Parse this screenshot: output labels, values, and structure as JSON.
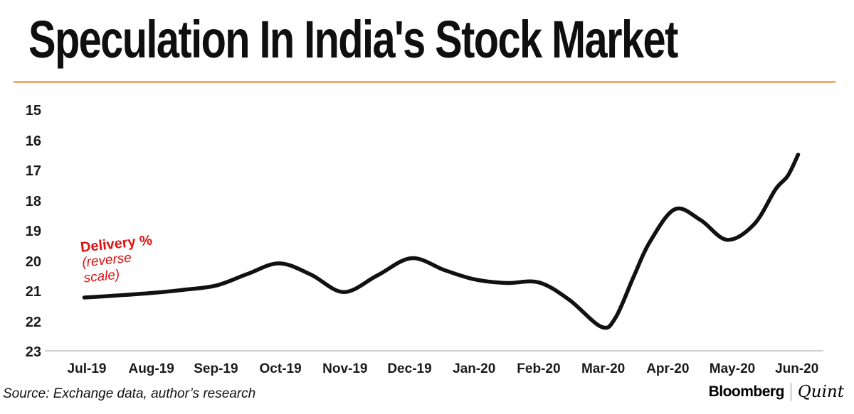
{
  "title": "Speculation In India's Stock Market",
  "accent_color": "#F4AC6E",
  "annotation": {
    "lines": [
      "Delivery %",
      "(reverse",
      "scale)"
    ],
    "color": "#E01111"
  },
  "footer": {
    "source": "Source: Exchange data, author’s research",
    "brand_left": "Bloomberg",
    "brand_right": "Quint"
  },
  "chart_data": {
    "type": "line",
    "title": "Speculation In India's Stock Market",
    "series": [
      {
        "name": "Delivery % (reverse scale)",
        "values": [
          21.2,
          21.0,
          20.8,
          20.1,
          21.0,
          19.9,
          20.6,
          20.7,
          22.2,
          18.3,
          19.3,
          16.5
        ]
      }
    ],
    "categories": [
      "Jul-19",
      "Aug-19",
      "Sep-19",
      "Oct-19",
      "Nov-19",
      "Dec-19",
      "Jan-20",
      "Feb-20",
      "Mar-20",
      "Apr-20",
      "May-20",
      "Jun-20"
    ],
    "y_ticks": [
      15,
      16,
      17,
      18,
      19,
      20,
      21,
      22,
      23
    ],
    "ylim": [
      15,
      23
    ],
    "y_axis_reversed": true,
    "grid": false,
    "legend_position": "none",
    "line_color": "#111111",
    "axis_line_color": "#cfcfcf",
    "detailed_points": [
      [
        -0.04,
        21.18
      ],
      [
        0.42,
        21.12
      ],
      [
        1.0,
        21.03
      ],
      [
        1.52,
        20.92
      ],
      [
        2.01,
        20.78
      ],
      [
        2.49,
        20.4
      ],
      [
        2.98,
        20.05
      ],
      [
        3.47,
        20.42
      ],
      [
        3.98,
        21.0
      ],
      [
        4.5,
        20.45
      ],
      [
        5.03,
        19.88
      ],
      [
        5.55,
        20.28
      ],
      [
        6.01,
        20.58
      ],
      [
        6.5,
        20.7
      ],
      [
        7.0,
        20.68
      ],
      [
        7.47,
        21.25
      ],
      [
        7.97,
        22.15
      ],
      [
        8.19,
        21.85
      ],
      [
        8.47,
        20.5
      ],
      [
        8.72,
        19.35
      ],
      [
        9.11,
        18.26
      ],
      [
        9.51,
        18.62
      ],
      [
        9.92,
        19.27
      ],
      [
        10.34,
        18.75
      ],
      [
        10.67,
        17.6
      ],
      [
        10.86,
        17.15
      ],
      [
        11.02,
        16.45
      ]
    ]
  }
}
